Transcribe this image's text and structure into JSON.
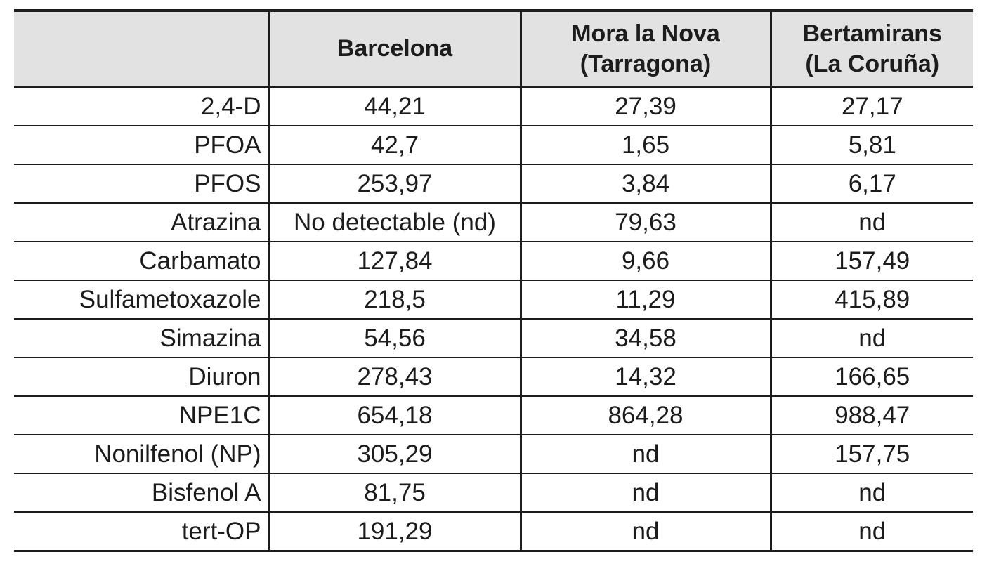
{
  "table": {
    "headers": [
      "",
      "Barcelona",
      "Mora la Nova\n(Tarragona)",
      "Bertamirans\n(La Coruña)"
    ],
    "rows": [
      {
        "label": "2,4-D",
        "values": [
          "44,21",
          "27,39",
          "27,17"
        ]
      },
      {
        "label": "PFOA",
        "values": [
          "42,7",
          "1,65",
          "5,81"
        ]
      },
      {
        "label": "PFOS",
        "values": [
          "253,97",
          "3,84",
          "6,17"
        ]
      },
      {
        "label": "Atrazina",
        "values": [
          "No detectable (nd)",
          "79,63",
          "nd"
        ]
      },
      {
        "label": "Carbamato",
        "values": [
          "127,84",
          "9,66",
          "157,49"
        ]
      },
      {
        "label": "Sulfametoxazole",
        "values": [
          "218,5",
          "11,29",
          "415,89"
        ]
      },
      {
        "label": "Simazina",
        "values": [
          "54,56",
          "34,58",
          "nd"
        ]
      },
      {
        "label": "Diuron",
        "values": [
          "278,43",
          "14,32",
          "166,65"
        ]
      },
      {
        "label": "NPE1C",
        "values": [
          "654,18",
          "864,28",
          "988,47"
        ]
      },
      {
        "label": "Nonilfenol (NP)",
        "values": [
          "305,29",
          "nd",
          "157,75"
        ]
      },
      {
        "label": "Bisfenol A",
        "values": [
          "81,75",
          "nd",
          "nd"
        ]
      },
      {
        "label": "tert-OP",
        "values": [
          "191,29",
          "nd",
          "nd"
        ]
      }
    ]
  },
  "colors": {
    "header_bg": "#e2e2e2",
    "border": "#1c1c1c",
    "text": "#1c1c1c"
  }
}
